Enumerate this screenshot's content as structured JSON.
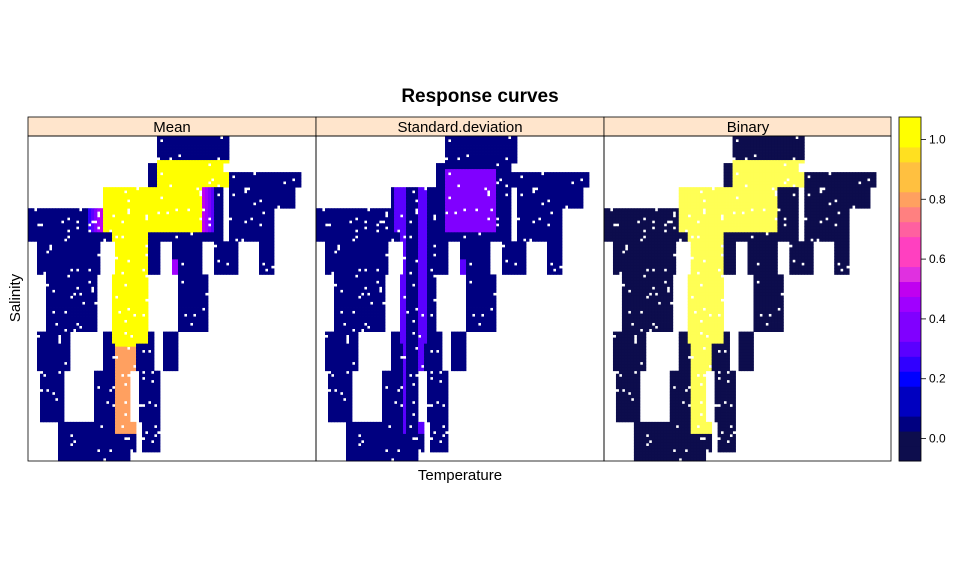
{
  "chart_data": {
    "type": "heatmap",
    "title": "Response curves",
    "xlabel": "Temperature",
    "ylabel": "Salinity",
    "panels": [
      "Mean",
      "Standard.deviation",
      "Binary"
    ],
    "colorbar": {
      "ticks": [
        0.0,
        0.2,
        0.4,
        0.6,
        0.8,
        1.0
      ],
      "tick_labels": [
        "0.0",
        "0.2",
        "0.4",
        "0.6",
        "0.8",
        "1.0"
      ],
      "range": [
        -0.075,
        1.075
      ],
      "levels": 23,
      "palette": [
        "#0d0d4d",
        "#000080",
        "#0000c0",
        "#0000ff",
        "#3000ff",
        "#5a00ff",
        "#8000ff",
        "#a000ff",
        "#c000f0",
        "#e030e0",
        "#ff40c0",
        "#ff60a0",
        "#ff8080",
        "#ffa060",
        "#ffc040",
        "#ffe020",
        "#ffff00"
      ]
    },
    "colors": {
      "strip_background": "#ffe5cc",
      "binary_zero": "#0d0d4d",
      "binary_one": "#ffff55"
    }
  }
}
